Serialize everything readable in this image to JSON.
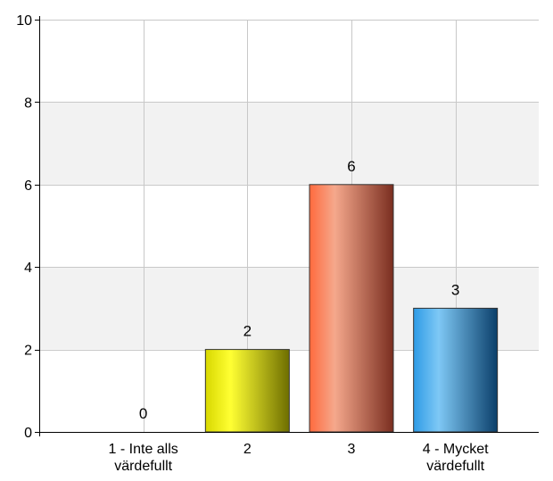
{
  "chart_data": {
    "type": "bar",
    "categories": [
      [
        "1 - Inte alls",
        "värdefullt"
      ],
      [
        "2"
      ],
      [
        "3"
      ],
      [
        "4 - Mycket",
        "värdefullt"
      ]
    ],
    "values": [
      0,
      2,
      6,
      3
    ],
    "data_labels": [
      "0",
      "2",
      "6",
      "3"
    ],
    "ylim": [
      0,
      10
    ],
    "yticks": [
      0,
      2,
      4,
      6,
      8,
      10
    ],
    "grid": true,
    "legend": "none",
    "colors": {
      "band": "#f2f2f2",
      "grid": "#c8c8c8",
      "axis": "#000000",
      "bars": [
        {
          "dark": "#7a7a00",
          "light": "#ffff2a",
          "base": "#e6e600"
        },
        {
          "dark": "#6e6e00",
          "light": "#ffff33",
          "base": "#d8d800"
        },
        {
          "dark": "#7a2e20",
          "light": "#f5a88c",
          "base": "#ff6a3d"
        },
        {
          "dark": "#0b3f6a",
          "light": "#7ec8f5",
          "base": "#2e9be6"
        }
      ]
    }
  }
}
